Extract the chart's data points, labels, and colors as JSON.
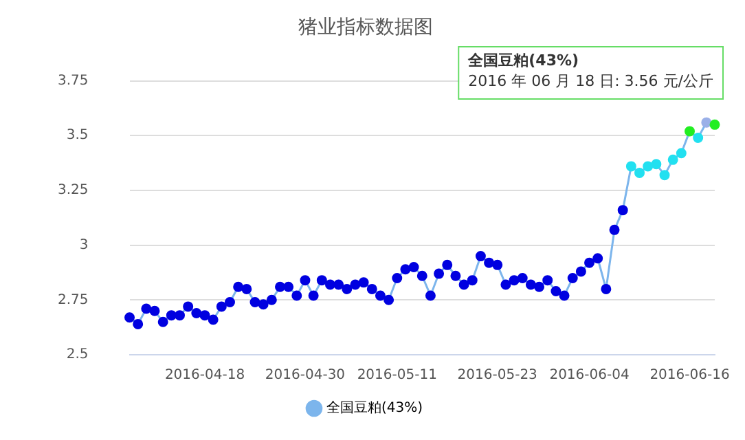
{
  "chart_data": {
    "type": "line",
    "title": "猪业指标数据图",
    "categories": [
      null,
      null,
      null,
      null,
      null,
      null,
      null,
      null,
      null,
      "2016-04-18",
      null,
      null,
      null,
      null,
      null,
      null,
      null,
      null,
      null,
      null,
      null,
      "2016-04-30",
      null,
      null,
      null,
      null,
      null,
      null,
      null,
      null,
      null,
      null,
      "2016-05-11",
      null,
      null,
      null,
      null,
      null,
      null,
      null,
      null,
      null,
      null,
      null,
      "2016-05-23",
      null,
      null,
      null,
      null,
      null,
      null,
      null,
      null,
      null,
      null,
      "2016-06-04",
      null,
      null,
      null,
      null,
      null,
      null,
      null,
      null,
      null,
      null,
      null,
      "2016-06-16",
      null,
      null,
      null
    ],
    "series": [
      {
        "name": "全国豆粕(43%)",
        "color": "#7cb5ec",
        "values": [
          2.67,
          2.64,
          2.71,
          2.7,
          2.65,
          2.68,
          2.68,
          2.72,
          2.69,
          2.68,
          2.66,
          2.72,
          2.74,
          2.81,
          2.8,
          2.74,
          2.73,
          2.75,
          2.81,
          2.81,
          2.77,
          2.84,
          2.77,
          2.84,
          2.82,
          2.82,
          2.8,
          2.82,
          2.83,
          2.8,
          2.77,
          2.75,
          2.85,
          2.89,
          2.9,
          2.86,
          2.77,
          2.87,
          2.91,
          2.86,
          2.82,
          2.84,
          2.95,
          2.92,
          2.91,
          2.82,
          2.84,
          2.85,
          2.82,
          2.81,
          2.84,
          2.79,
          2.77,
          2.85,
          2.88,
          2.92,
          2.94,
          2.8,
          3.07,
          3.16,
          3.36,
          3.33,
          3.36,
          3.37,
          3.32,
          3.39,
          3.42,
          3.52,
          3.49,
          3.56,
          3.55
        ],
        "colors": [
          "#0000e0",
          "#0000e0",
          "#0000e0",
          "#0000e0",
          "#0000e0",
          "#0000e0",
          "#0000e0",
          "#0000e0",
          "#0000e0",
          "#0000e0",
          "#0000e0",
          "#0000e0",
          "#0000e0",
          "#0000e0",
          "#0000e0",
          "#0000e0",
          "#0000e0",
          "#0000e0",
          "#0000e0",
          "#0000e0",
          "#0000e0",
          "#0000e0",
          "#0000e0",
          "#0000e0",
          "#0000e0",
          "#0000e0",
          "#0000e0",
          "#0000e0",
          "#0000e0",
          "#0000e0",
          "#0000e0",
          "#0000e0",
          "#0000e0",
          "#0000e0",
          "#0000e0",
          "#0000e0",
          "#0000e0",
          "#0000e0",
          "#0000e0",
          "#0000e0",
          "#0000e0",
          "#0000e0",
          "#0000e0",
          "#0000e0",
          "#0000e0",
          "#0000e0",
          "#0000e0",
          "#0000e0",
          "#0000e0",
          "#0000e0",
          "#0000e0",
          "#0000e0",
          "#0000e0",
          "#0000e0",
          "#0000e0",
          "#0000e0",
          "#0000e0",
          "#0000e0",
          "#0000e0",
          "#0000e0",
          "#22e0f0",
          "#22e0f0",
          "#22e0f0",
          "#22e0f0",
          "#22e0f0",
          "#22e0f0",
          "#22e0f0",
          "#22ee22",
          "#22e0f0",
          "#9ab0e8",
          "#22ee22"
        ]
      }
    ],
    "ylim": [
      2.5,
      3.75
    ],
    "yticks": [
      2.5,
      2.75,
      3,
      3.25,
      3.5,
      3.75
    ],
    "grid": "y",
    "legend": "bottom",
    "marker": "circle",
    "annotations": [
      "全国豆粕(43%)",
      "2016 年 06 月 18 日: 3.56 元/公斤"
    ]
  }
}
